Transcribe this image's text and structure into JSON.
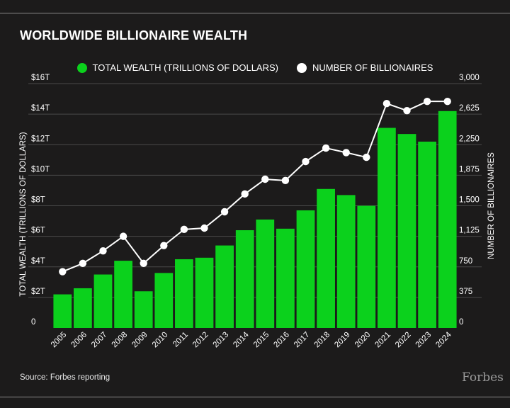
{
  "header": {
    "title": "WORLDWIDE BILLIONAIRE WEALTH"
  },
  "legend": [
    {
      "label": "TOTAL WEALTH (TRILLIONS OF DOLLARS)",
      "color": "#0bd11c"
    },
    {
      "label": "NUMBER OF BILLIONAIRES",
      "color": "#ffffff"
    }
  ],
  "footer": {
    "source": "Source: Forbes reporting",
    "brand": "Forbes"
  },
  "chart_data": {
    "type": "bar",
    "categories": [
      "2005",
      "2006",
      "2007",
      "2008",
      "2009",
      "2010",
      "2011",
      "2012",
      "2013",
      "2014",
      "2015",
      "2016",
      "2017",
      "2018",
      "2019",
      "2020",
      "2021",
      "2022",
      "2023",
      "2024"
    ],
    "series": [
      {
        "name": "TOTAL WEALTH (TRILLIONS OF DOLLARS)",
        "type": "bar",
        "axis": "left",
        "color": "#0bd11c",
        "values": [
          2.2,
          2.6,
          3.5,
          4.4,
          2.4,
          3.6,
          4.5,
          4.6,
          5.4,
          6.4,
          7.1,
          6.5,
          7.7,
          9.1,
          8.7,
          8.0,
          13.1,
          12.7,
          12.2,
          14.2
        ]
      },
      {
        "name": "NUMBER OF BILLIONAIRES",
        "type": "line",
        "axis": "right",
        "color": "#ffffff",
        "values": [
          691,
          793,
          946,
          1125,
          793,
          1011,
          1210,
          1226,
          1426,
          1645,
          1826,
          1810,
          2043,
          2208,
          2153,
          2095,
          2755,
          2668,
          2781,
          2781
        ]
      }
    ],
    "y_left": {
      "label": "TOTAL WEALTH (TRILLIONS OF DOLLARS)",
      "range": [
        0,
        16
      ],
      "ticks": [
        0,
        2,
        4,
        6,
        8,
        10,
        12,
        14,
        16
      ],
      "tick_labels": [
        "0",
        "$2T",
        "$4T",
        "$6T",
        "$8T",
        "$10T",
        "$12T",
        "$14T",
        "$16T"
      ]
    },
    "y_right": {
      "label": "NUMBER OF BILLIONAIRES",
      "range": [
        0,
        3000
      ],
      "ticks": [
        0,
        375,
        750,
        1125,
        1500,
        1875,
        2250,
        2625,
        3000
      ],
      "tick_labels": [
        "0",
        "375",
        "750",
        "1,125",
        "1,500",
        "1,875",
        "2,250",
        "2,625",
        "3,000"
      ]
    },
    "grid": true,
    "legend_position": "top"
  }
}
